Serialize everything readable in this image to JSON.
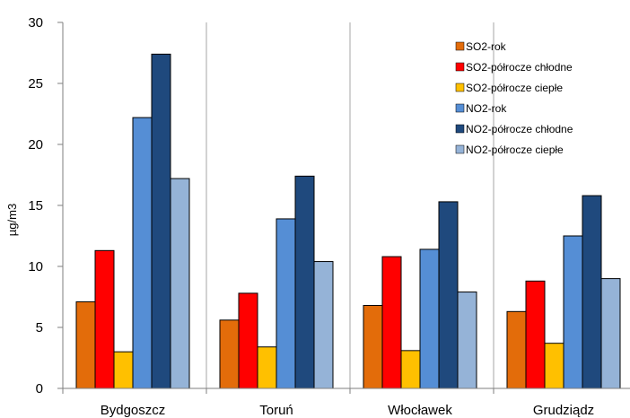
{
  "chart_data": {
    "type": "bar",
    "title": "",
    "xlabel": "",
    "ylabel": "µg/m3",
    "ylim": [
      0,
      30
    ],
    "yticks": [
      0,
      5,
      10,
      15,
      20,
      25,
      30
    ],
    "grid": "vertical category separators",
    "legend_position": "top-right",
    "categories": [
      "Bydgoszcz",
      "Toruń",
      "Włocławek",
      "Grudziądz"
    ],
    "series": [
      {
        "name": "SO2-rok",
        "color": "#e36c0a",
        "values": [
          7.1,
          5.6,
          6.8,
          6.3
        ]
      },
      {
        "name": "SO2-półrocze chłodne",
        "color": "#ff0000",
        "values": [
          11.3,
          7.8,
          10.8,
          8.8
        ]
      },
      {
        "name": "SO2-półrocze ciepłe",
        "color": "#ffc000",
        "values": [
          3.0,
          3.4,
          3.1,
          3.7
        ]
      },
      {
        "name": "NO2-rok",
        "color": "#558ed5",
        "values": [
          22.2,
          13.9,
          11.4,
          12.5
        ]
      },
      {
        "name": "NO2-półrocze chłodne",
        "color": "#1f497d",
        "values": [
          27.4,
          17.4,
          15.3,
          15.8
        ]
      },
      {
        "name": "NO2-półrocze ciepłe",
        "color": "#95b3d7",
        "values": [
          17.2,
          10.4,
          7.9,
          9.0
        ]
      }
    ]
  }
}
